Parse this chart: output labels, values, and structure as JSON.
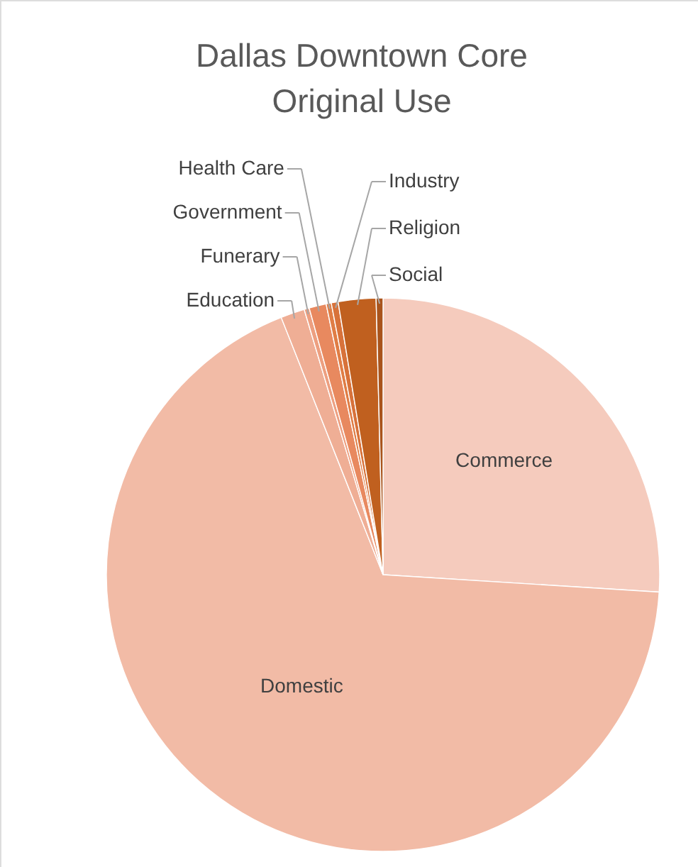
{
  "chart_data": {
    "type": "pie",
    "title": "Dallas Downtown Core\nOriginal Use",
    "categories": [
      "Commerce",
      "Domestic",
      "Education",
      "Funerary",
      "Government",
      "Health Care",
      "Industry",
      "Religion",
      "Social"
    ],
    "values": [
      26,
      68,
      1.4,
      0.3,
      1.0,
      0.3,
      0.4,
      2.2,
      0.4
    ],
    "colors": [
      "#f5cbbd",
      "#f2bba6",
      "#efae95",
      "#ed9f80",
      "#e8895f",
      "#e07d45",
      "#d8723a",
      "#c0601f",
      "#a9541c"
    ]
  }
}
